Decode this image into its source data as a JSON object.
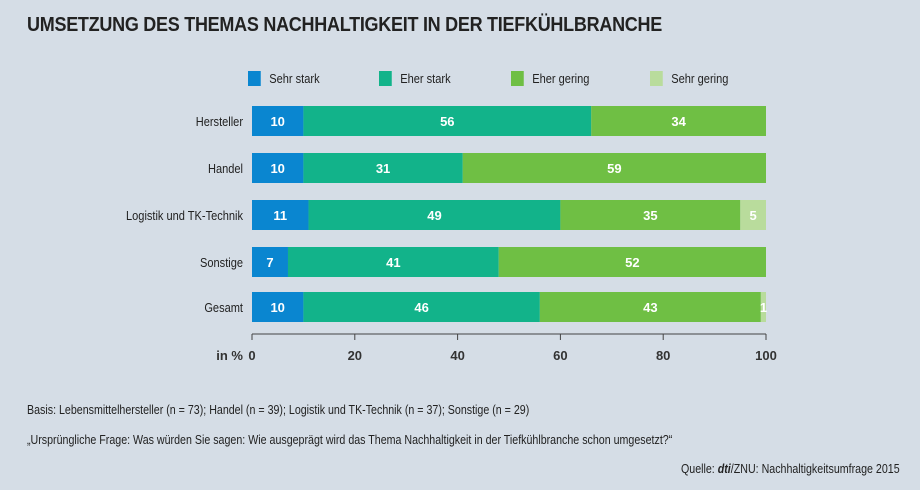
{
  "chart_data": {
    "type": "bar",
    "stacked": true,
    "orientation": "horizontal",
    "title": "UMSETZUNG DES THEMAS NACHHALTIGKEIT IN DER TIEFKÜHLBRANCHE",
    "xlabel": "in %",
    "xlim": [
      0,
      100
    ],
    "xticks": [
      0,
      20,
      40,
      60,
      80,
      100
    ],
    "categories": [
      "Hersteller",
      "Handel",
      "Logistik und TK-Technik",
      "Sonstige",
      "Gesamt"
    ],
    "series": [
      {
        "name": "Sehr stark",
        "color": "#0a86d0",
        "values": [
          10,
          10,
          11,
          7,
          10
        ]
      },
      {
        "name": "Eher stark",
        "color": "#12b38a",
        "values": [
          56,
          31,
          49,
          41,
          46
        ]
      },
      {
        "name": "Eher gering",
        "color": "#6fbf44",
        "values": [
          34,
          59,
          35,
          52,
          43
        ]
      },
      {
        "name": "Sehr gering",
        "color": "#b9dc9c",
        "values": [
          0,
          0,
          5,
          0,
          1
        ]
      }
    ],
    "legend": "top"
  },
  "footer": {
    "basis": "Basis: Lebensmittelhersteller (n = 73); Handel (n = 39);  Logistik und TK-Technik (n = 37); Sonstige (n = 29)",
    "question": "„Ursprüngliche Frage: Was würden Sie sagen: Wie ausgeprägt wird das Thema Nachhaltigkeit in der Tiefkühlbranche schon umgesetzt?“",
    "source_prefix": "Quelle: ",
    "source_brand": "dti",
    "source_rest": "/ZNU: Nachhaltigkeitsumfrage 2015"
  }
}
